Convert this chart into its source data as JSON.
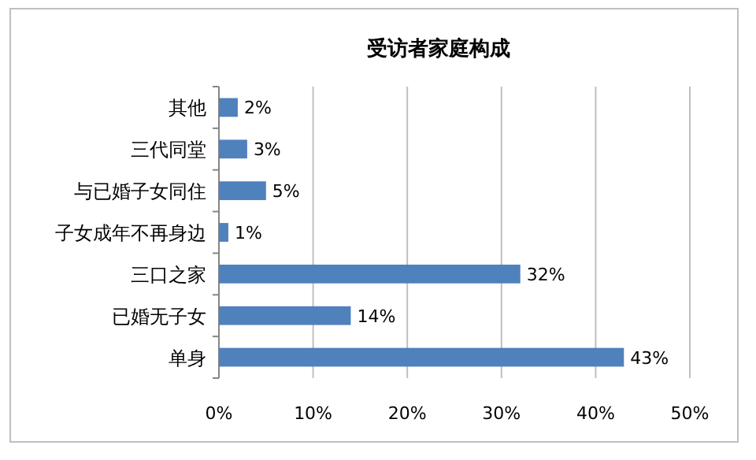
{
  "chart_data": {
    "type": "bar",
    "orientation": "horizontal",
    "title": "受访者家庭构成",
    "categories": [
      "其他",
      "三代同堂",
      "与已婚子女同住",
      "子女成年不再身边",
      "三口之家",
      "已婚无子女",
      "单身"
    ],
    "values": [
      2,
      3,
      5,
      1,
      32,
      14,
      43
    ],
    "value_labels": [
      "2%",
      "3%",
      "5%",
      "1%",
      "32%",
      "14%",
      "43%"
    ],
    "color": "#4f81bd",
    "xlim": [
      0,
      50
    ],
    "xticks": [
      {
        "value": 0,
        "label": "0%"
      },
      {
        "value": 10,
        "label": "10%"
      },
      {
        "value": 20,
        "label": "20%"
      },
      {
        "value": 30,
        "label": "30%"
      },
      {
        "value": 40,
        "label": "40%"
      },
      {
        "value": 50,
        "label": "50%"
      }
    ],
    "grid": "x"
  }
}
